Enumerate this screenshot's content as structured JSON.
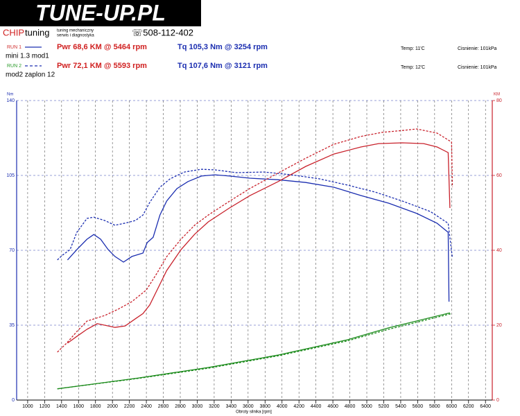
{
  "header": {
    "logo": "TUNE-UP.PL",
    "brand_chip": "CHIP",
    "brand_tuning": "tuning",
    "tagline": [
      "tuning mechaniczny",
      "serwis i diagnostyka"
    ],
    "phone": "☏508-112-402"
  },
  "runs": [
    {
      "label": "RUN 1",
      "power": "Pwr 68,6 KM @ 5464 rpm",
      "torque": "Tq 105,3 Nm @ 3254 rpm",
      "temp": "Temp: 11'C",
      "pressure": "Cisnienie: 101kPa",
      "description": "mini 1.3 mod1",
      "dashed": false,
      "color": "#d03030"
    },
    {
      "label": "RUN 2",
      "power": "Pwr 72,1 KM @ 5593 rpm",
      "torque": "Tq 107,6 Nm @ 3121 rpm",
      "temp": "Temp: 12'C",
      "pressure": "Cisnienie: 101kPa",
      "description": "mod2 zaplon 12",
      "dashed": true,
      "color": "#2a9a2a"
    }
  ],
  "chart_data": {
    "type": "line",
    "xlabel": "Obroty silnika [rpm]",
    "ylabel": "Nm",
    "y2label": "KM",
    "xlim": [
      870,
      6480
    ],
    "xticks": [
      1000,
      1200,
      1400,
      1600,
      1800,
      2000,
      2200,
      2400,
      2600,
      2800,
      3000,
      3200,
      3400,
      3600,
      3800,
      4000,
      4200,
      4400,
      4600,
      4800,
      5000,
      5200,
      5400,
      5600,
      5800,
      6000,
      6200,
      6400
    ],
    "ylim": [
      0,
      140
    ],
    "yticks": [
      0,
      35,
      70,
      105,
      140
    ],
    "y2lim": [
      0,
      80
    ],
    "y2ticks": [
      0,
      20,
      40,
      60,
      80
    ],
    "grid": true,
    "series": [
      {
        "color": "#1a2db0",
        "dashed": false,
        "axis": "y",
        "x": [
          1470,
          1580,
          1700,
          1780,
          1860,
          1950,
          2030,
          2130,
          2230,
          2360,
          2410,
          2480,
          2560,
          2640,
          2760,
          2890,
          3050,
          3210,
          3380,
          3620,
          3950,
          4280,
          4610,
          4930,
          5260,
          5590,
          5830,
          5960,
          5970
        ],
        "values": [
          65.5,
          70.3,
          75.2,
          77.4,
          75.2,
          70.3,
          67.1,
          64.5,
          67.1,
          68.7,
          73.6,
          76.1,
          86.5,
          93.0,
          98.8,
          102.1,
          104.7,
          105.3,
          104.7,
          103.7,
          103.0,
          101.7,
          99.5,
          95.6,
          92.0,
          87.2,
          82.6,
          78.4,
          46.0
        ]
      },
      {
        "color": "#1a2db0",
        "dashed": true,
        "axis": "y",
        "x": [
          1350,
          1410,
          1500,
          1580,
          1700,
          1780,
          1910,
          2030,
          2150,
          2270,
          2360,
          2440,
          2560,
          2680,
          2850,
          3050,
          3210,
          3460,
          3790,
          4110,
          4440,
          4770,
          5100,
          5420,
          5750,
          5960,
          6010
        ],
        "values": [
          65.5,
          67.7,
          70.3,
          78.4,
          84.9,
          85.5,
          83.9,
          81.7,
          82.7,
          83.9,
          86.5,
          92.4,
          99.5,
          103.4,
          106.6,
          107.9,
          107.6,
          106.3,
          106.6,
          105.3,
          103.4,
          100.5,
          97.2,
          93.0,
          88.1,
          82.6,
          66.4
        ]
      },
      {
        "color": "#c8202a",
        "dashed": false,
        "axis": "y2",
        "x": [
          1470,
          1580,
          1700,
          1820,
          1950,
          2030,
          2150,
          2270,
          2360,
          2440,
          2520,
          2640,
          2810,
          2970,
          3130,
          3380,
          3620,
          3950,
          4280,
          4610,
          4930,
          5140,
          5420,
          5670,
          5830,
          5960,
          5980
        ],
        "values": [
          15.2,
          17.0,
          18.9,
          20.4,
          19.8,
          19.4,
          19.8,
          21.7,
          23.1,
          25.4,
          29.1,
          34.6,
          40.2,
          44.3,
          47.6,
          51.3,
          54.6,
          58.3,
          62.4,
          65.7,
          67.6,
          68.5,
          68.7,
          68.5,
          67.6,
          66.1,
          51.3
        ]
      },
      {
        "color": "#c8202a",
        "dashed": true,
        "axis": "y2",
        "x": [
          1350,
          1460,
          1580,
          1700,
          1910,
          2070,
          2230,
          2400,
          2520,
          2640,
          2810,
          2970,
          3130,
          3380,
          3620,
          3950,
          4280,
          4610,
          4930,
          5180,
          5420,
          5590,
          5830,
          6000,
          6010
        ],
        "values": [
          12.8,
          15.2,
          18.3,
          21.1,
          22.6,
          24.3,
          26.3,
          29.4,
          33.7,
          38.3,
          43.0,
          46.7,
          49.4,
          53.1,
          56.5,
          60.6,
          64.6,
          68.3,
          70.4,
          71.5,
          72.0,
          72.4,
          71.3,
          68.9,
          56.9
        ]
      },
      {
        "color": "#1a8a1a",
        "dashed": false,
        "axis": "y2",
        "x": [
          1350,
          2310,
          3130,
          3950,
          4770,
          5260,
          5980
        ],
        "values": [
          3.0,
          5.9,
          8.7,
          12.0,
          16.1,
          19.3,
          23.3
        ]
      },
      {
        "color": "#1a8a1a",
        "dashed": true,
        "axis": "y2",
        "x": [
          1350,
          2310,
          3130,
          3950,
          4770,
          5260,
          6000
        ],
        "values": [
          3.0,
          5.8,
          8.5,
          11.8,
          15.8,
          18.9,
          23.1
        ]
      }
    ]
  }
}
